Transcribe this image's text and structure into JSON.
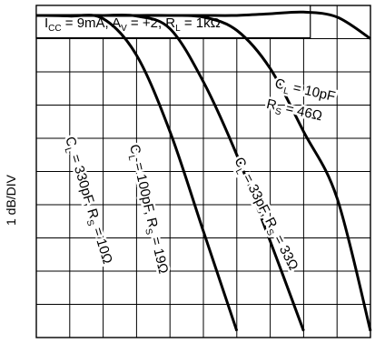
{
  "chart_data": {
    "type": "line",
    "title": "I_CC = 9mA, A_V = +2, R_L = 1kΩ",
    "title_parts": {
      "icc_main": "I",
      "icc_sub": "CC",
      "icc_val": " = 9mA, A",
      "av_sub": "V",
      "av_val": " = +2, R",
      "rl_sub": "L",
      "rl_val": " = 1kΩ"
    },
    "ylabel": "1 dB/DIV",
    "xlabel": "",
    "grid": true,
    "grid_divisions": {
      "x": 10,
      "y": 10
    },
    "x": [
      0,
      1,
      2,
      3,
      4,
      5,
      6,
      7,
      8,
      9,
      10
    ],
    "xlim": [
      0,
      10
    ],
    "ylim": [
      -9.7,
      0.3
    ],
    "log_x": true,
    "series": [
      {
        "label_parts": {
          "c": "C",
          "c_sub": "L",
          "c_val": " = 330pF, R",
          "r_sub": "S",
          "r_val": " = 10Ω"
        },
        "values": [
          0,
          -0.02,
          -0.1,
          -1.2,
          -3.5,
          -6.5,
          -9.5,
          null,
          null,
          null,
          null
        ]
      },
      {
        "label_parts": {
          "c": "C",
          "c_sub": "L",
          "c_val": " = 100pF, R",
          "r_sub": "S",
          "r_val": " = 19Ω"
        },
        "values": [
          0,
          0,
          0,
          -0.02,
          -0.4,
          -2.0,
          -4.2,
          -6.8,
          -9.5,
          null,
          null
        ]
      },
      {
        "label_parts": {
          "c": "C",
          "c_sub": "L",
          "c_val": " = 33pF, R",
          "r_sub": "S",
          "r_val": " = 33Ω"
        },
        "values": [
          0,
          0,
          0,
          0,
          0,
          -0.05,
          -0.45,
          -1.6,
          -3.5,
          -5.5,
          -9.5
        ]
      },
      {
        "label_parts": {
          "c": "C",
          "c_sub": "L",
          "c_val": " = 10pF",
          "r": "R",
          "r_sub": "S",
          "r_val": " = 46Ω"
        },
        "values": [
          0,
          0,
          0,
          0,
          0,
          0,
          0,
          0.05,
          0.1,
          -0.05,
          -0.7
        ]
      }
    ]
  }
}
